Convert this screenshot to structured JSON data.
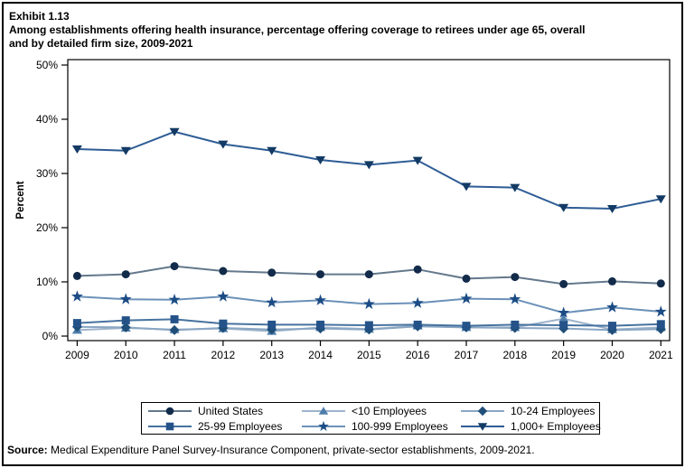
{
  "title": {
    "lines": [
      "Exhibit 1.13",
      "Among establishments offering health insurance, percentage offering coverage to retirees under age 65, overall",
      "and by detailed firm size, 2009-2021"
    ]
  },
  "chart_data": {
    "type": "line",
    "title": "Among establishments offering health insurance, percentage offering coverage to retirees under age 65, overall and by detailed firm size, 2009-2021",
    "x": [
      2009,
      2010,
      2011,
      2012,
      2013,
      2014,
      2015,
      2016,
      2017,
      2018,
      2019,
      2020,
      2021
    ],
    "xlabel": "",
    "ylabel": "Percent",
    "ylim": [
      0,
      50
    ],
    "ytick_step": 10,
    "ytick_suffix": "%",
    "grid": false,
    "legend_position": "bottom",
    "series": [
      {
        "name": "United States",
        "marker": "circle",
        "line_color": "#64788c",
        "marker_color": "#132b4a",
        "values": [
          11.1,
          11.4,
          12.9,
          12.0,
          11.7,
          11.4,
          11.4,
          12.3,
          10.6,
          10.9,
          9.6,
          10.1,
          9.7
        ]
      },
      {
        "name": "<10 Employees",
        "marker": "triangle-up",
        "line_color": "#9db4cb",
        "marker_color": "#4e7dab",
        "values": [
          1.1,
          1.5,
          1.2,
          1.4,
          0.9,
          1.6,
          1.3,
          1.9,
          1.6,
          1.6,
          3.2,
          1.2,
          1.6
        ]
      },
      {
        "name": "10-24 Employees",
        "marker": "diamond",
        "line_color": "#8aa6c3",
        "marker_color": "#1f4e79",
        "values": [
          1.7,
          1.6,
          1.1,
          1.5,
          1.2,
          1.4,
          1.2,
          1.8,
          1.6,
          1.5,
          1.4,
          1.1,
          1.3
        ]
      },
      {
        "name": "25-99 Employees",
        "marker": "square",
        "line_color": "#46729f",
        "marker_color": "#255389",
        "values": [
          2.4,
          2.9,
          3.1,
          2.3,
          2.1,
          2.1,
          2.0,
          2.1,
          1.9,
          2.1,
          2.0,
          1.9,
          2.2
        ]
      },
      {
        "name": "100-999 Employees",
        "marker": "star",
        "line_color": "#6b91b8",
        "marker_color": "#1c4c85",
        "values": [
          7.3,
          6.8,
          6.7,
          7.3,
          6.2,
          6.6,
          5.9,
          6.1,
          6.9,
          6.8,
          4.3,
          5.3,
          4.5
        ]
      },
      {
        "name": "1,000+ Employees",
        "marker": "triangle-down",
        "line_color": "#2e5c95",
        "marker_color": "#133a64",
        "values": [
          34.5,
          34.2,
          37.7,
          35.4,
          34.2,
          32.5,
          31.6,
          32.4,
          27.6,
          27.4,
          23.7,
          23.5,
          25.3
        ]
      }
    ]
  },
  "source": {
    "label": "Source:",
    "text": " Medical Expenditure Panel Survey-Insurance Component, private-sector establishments, 2009-2021."
  }
}
